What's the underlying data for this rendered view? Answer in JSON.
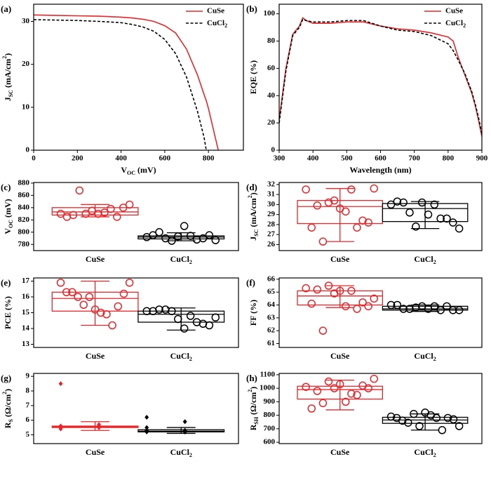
{
  "chart_data": [
    {
      "type": "line",
      "panel": "(a)",
      "xlabel": [
        "V",
        {
          "sub": "OC"
        },
        " (mV)"
      ],
      "ylabel": [
        "J",
        {
          "sub": "SC"
        },
        " (mA/cm",
        {
          "sup": "2"
        },
        ")"
      ],
      "x": [
        0,
        100,
        200,
        300,
        400,
        450,
        500,
        550,
        600,
        650,
        700,
        750,
        780,
        790,
        800,
        845
      ],
      "xlim": [
        0,
        960
      ],
      "xticks": [
        0,
        200,
        400,
        600,
        800
      ],
      "ylim": [
        0,
        34
      ],
      "yticks": [
        0,
        10,
        20,
        30
      ],
      "legend": "upper right",
      "series": [
        {
          "name": "CuSe",
          "color": "#e8262a",
          "linestyle": "solid",
          "values": [
            31.5,
            31.4,
            31.3,
            31.2,
            31.0,
            30.8,
            30.5,
            30.0,
            29.0,
            27.3,
            23.5,
            17.5,
            13,
            11.5,
            9.7,
            0
          ]
        },
        {
          "name": [
            "CuCl",
            {
              "sub": "2"
            }
          ],
          "color": "#000000",
          "linestyle": "dashed",
          "values": [
            30.4,
            30.3,
            30.2,
            30.0,
            29.7,
            29.3,
            28.7,
            27.7,
            25.8,
            22.5,
            17,
            9,
            3,
            0,
            null,
            null
          ]
        }
      ]
    },
    {
      "type": "line",
      "panel": "(b)",
      "xlabel": "Wavelength (nm)",
      "ylabel": "EQE (%)",
      "x": [
        300,
        320,
        340,
        360,
        370,
        380,
        400,
        450,
        500,
        550,
        600,
        650,
        700,
        750,
        800,
        815,
        830,
        850,
        870,
        880,
        890,
        900
      ],
      "xlim": [
        300,
        900
      ],
      "xticks": [
        300,
        400,
        500,
        600,
        700,
        800,
        900
      ],
      "ylim": [
        0,
        107
      ],
      "yticks": [
        0,
        20,
        40,
        60,
        80,
        100
      ],
      "legend": "upper right",
      "series": [
        {
          "name": "CuSe",
          "color": "#e8262a",
          "linestyle": "solid",
          "values": [
            22,
            60,
            85,
            91,
            97,
            95,
            93,
            93,
            94,
            94,
            91,
            89,
            88,
            86,
            83,
            80,
            68,
            55,
            42,
            33,
            22,
            10
          ]
        },
        {
          "name": [
            "CuCl",
            {
              "sub": "2"
            }
          ],
          "color": "#000000",
          "linestyle": "dashed",
          "values": [
            20,
            58,
            84,
            90,
            96,
            95,
            94,
            94,
            95,
            95,
            91,
            88,
            87,
            84,
            78,
            73,
            66,
            56,
            43,
            34,
            24,
            12
          ]
        }
      ]
    },
    {
      "type": "box",
      "panel": "(c)",
      "ylabel": [
        "V",
        {
          "sub": "OC"
        },
        " (mV)"
      ],
      "marker": "circle",
      "categories": [
        "CuSe",
        [
          "CuCl",
          {
            "sub": "2"
          }
        ]
      ],
      "ylim": [
        770,
        881
      ],
      "yticks": [
        780,
        800,
        820,
        840,
        860,
        880
      ],
      "groups": [
        {
          "color": "#e8262a",
          "points": [
            830,
            835,
            840,
            868,
            838,
            825,
            830,
            845,
            830,
            825,
            828,
            832
          ],
          "q1": 828,
          "median": 833,
          "q3": 840,
          "whisker_low": 825,
          "whisker_high": 845
        },
        {
          "color": "#000000",
          "points": [
            792,
            793,
            795,
            790,
            788,
            795,
            810,
            787,
            786,
            790,
            800,
            794
          ],
          "q1": 789,
          "median": 792,
          "q3": 794,
          "whisker_low": 786,
          "whisker_high": 799
        }
      ]
    },
    {
      "type": "box",
      "panel": "(d)",
      "ylabel": [
        "J",
        {
          "sub": "SC"
        },
        " (mA/cm",
        {
          "sup": "2"
        },
        ")"
      ],
      "marker": "circle",
      "categories": [
        "CuSe",
        [
          "CuCl",
          {
            "sub": "2"
          }
        ]
      ],
      "ylim": [
        25.4,
        32.2
      ],
      "yticks": [
        26,
        27,
        28,
        29,
        30,
        31,
        32
      ],
      "groups": [
        {
          "color": "#e8262a",
          "points": [
            31.5,
            30.4,
            28.4,
            29.9,
            29.3,
            31.6,
            30.2,
            27.7,
            27.7,
            29.6,
            28.2,
            26.3,
            31.5
          ],
          "q1": 28.1,
          "median": 29.8,
          "q3": 30.4,
          "whisker_low": 26.3,
          "whisker_high": 31.6
        },
        {
          "color": "#000000",
          "points": [
            30.0,
            30.2,
            28.2,
            29.2,
            28.6,
            30.3,
            29.0,
            27.6,
            27.8,
            28.6,
            30.2,
            30.0
          ],
          "q1": 28.3,
          "median": 29.6,
          "q3": 30.1,
          "whisker_low": 27.6,
          "whisker_high": 30.3
        }
      ]
    },
    {
      "type": "box",
      "panel": "(e)",
      "ylabel": "PCE (%)",
      "marker": "circle",
      "categories": [
        "CuSe",
        [
          "CuCl",
          {
            "sub": "2"
          }
        ]
      ],
      "ylim": [
        12.8,
        17.2
      ],
      "yticks": [
        13,
        14,
        15,
        16,
        17
      ],
      "groups": [
        {
          "color": "#e8262a",
          "points": [
            16.9,
            16.0,
            15.4,
            16.3,
            15.0,
            16.9,
            15.5,
            14.2,
            16.3,
            15.2,
            16.2,
            16.0,
            14.9
          ],
          "q1": 15.1,
          "median": 15.9,
          "q3": 16.3,
          "whisker_low": 14.2,
          "whisker_high": 17.0
        },
        {
          "color": "#000000",
          "points": [
            15.1,
            14.6,
            14.2,
            15.2,
            14.4,
            15.1,
            14.0,
            14.7,
            15.1,
            14.3,
            15.2,
            14.8
          ],
          "q1": 14.4,
          "median": 14.9,
          "q3": 15.1,
          "whisker_low": 13.9,
          "whisker_high": 15.3
        }
      ]
    },
    {
      "type": "box",
      "panel": "(f)",
      "ylabel": "FF (%)",
      "marker": "circle",
      "categories": [
        "CuSe",
        [
          "CuCl",
          {
            "sub": "2"
          }
        ]
      ],
      "ylim": [
        60.7,
        66.1
      ],
      "yticks": [
        61,
        62,
        63,
        64,
        65,
        66
      ],
      "groups": [
        {
          "color": "#e8262a",
          "points": [
            65.3,
            64.9,
            64.2,
            65.2,
            63.9,
            64.5,
            65.5,
            63.7,
            64.1,
            65.1,
            63.9,
            62.0,
            65.1
          ],
          "q1": 64.0,
          "median": 64.7,
          "q3": 65.1,
          "whisker_low": 63.8,
          "whisker_high": 65.5
        },
        {
          "color": "#000000",
          "points": [
            64.0,
            63.9,
            63.6,
            63.7,
            63.6,
            64.0,
            63.7,
            63.6,
            63.8,
            63.9,
            63.7,
            63.9
          ],
          "q1": 63.6,
          "median": 63.7,
          "q3": 63.9,
          "whisker_low": 63.5,
          "whisker_high": 64.0
        }
      ]
    },
    {
      "type": "box",
      "panel": "(g)",
      "ylabel": [
        "R",
        {
          "sub": "S"
        },
        " (Ω/cm",
        {
          "sup": "2"
        },
        ")"
      ],
      "marker": "diamond",
      "categories": [
        "CuSe",
        [
          "CuCl",
          {
            "sub": "2"
          }
        ]
      ],
      "ylim": [
        4.4,
        9.2
      ],
      "yticks": [
        5,
        6,
        7,
        8,
        9
      ],
      "groups": [
        {
          "color": "#e8262a",
          "points": [
            5.6,
            5.7,
            5.4,
            5.5,
            8.5,
            5.6,
            5.5,
            5.6,
            5.6,
            5.5
          ],
          "q1": 5.5,
          "median": 5.55,
          "q3": 5.6,
          "whisker_low": 5.3,
          "whisker_high": 5.9
        },
        {
          "color": "#000000",
          "points": [
            5.5,
            5.3,
            5.2,
            5.3,
            6.2,
            5.2,
            5.3,
            5.9,
            5.3,
            5.2
          ],
          "q1": 5.2,
          "median": 5.25,
          "q3": 5.35,
          "whisker_low": 5.1,
          "whisker_high": 5.5
        }
      ]
    },
    {
      "type": "box",
      "panel": "(h)",
      "ylabel": [
        "R",
        {
          "sub": "SH"
        },
        " (Ω/cm",
        {
          "sup": "2"
        },
        ")"
      ],
      "marker": "circle",
      "categories": [
        "CuSe",
        [
          "CuCl",
          {
            "sub": "2"
          }
        ]
      ],
      "ylim": [
        590,
        1110
      ],
      "yticks": [
        600,
        700,
        800,
        900,
        1000,
        1100
      ],
      "groups": [
        {
          "color": "#e8262a",
          "points": [
            1010,
            1000,
            1020,
            980,
            900,
            1070,
            1050,
            950,
            850,
            1030,
            1000,
            890,
            960
          ],
          "q1": 920,
          "median": 990,
          "q3": 1015,
          "whisker_low": 840,
          "whisker_high": 1060
        },
        {
          "color": "#000000",
          "points": [
            790,
            720,
            780,
            760,
            800,
            720,
            810,
            690,
            780,
            820,
            770,
            745,
            780
          ],
          "q1": 740,
          "median": 765,
          "q3": 785,
          "whisker_low": 690,
          "whisker_high": 810
        }
      ]
    }
  ]
}
